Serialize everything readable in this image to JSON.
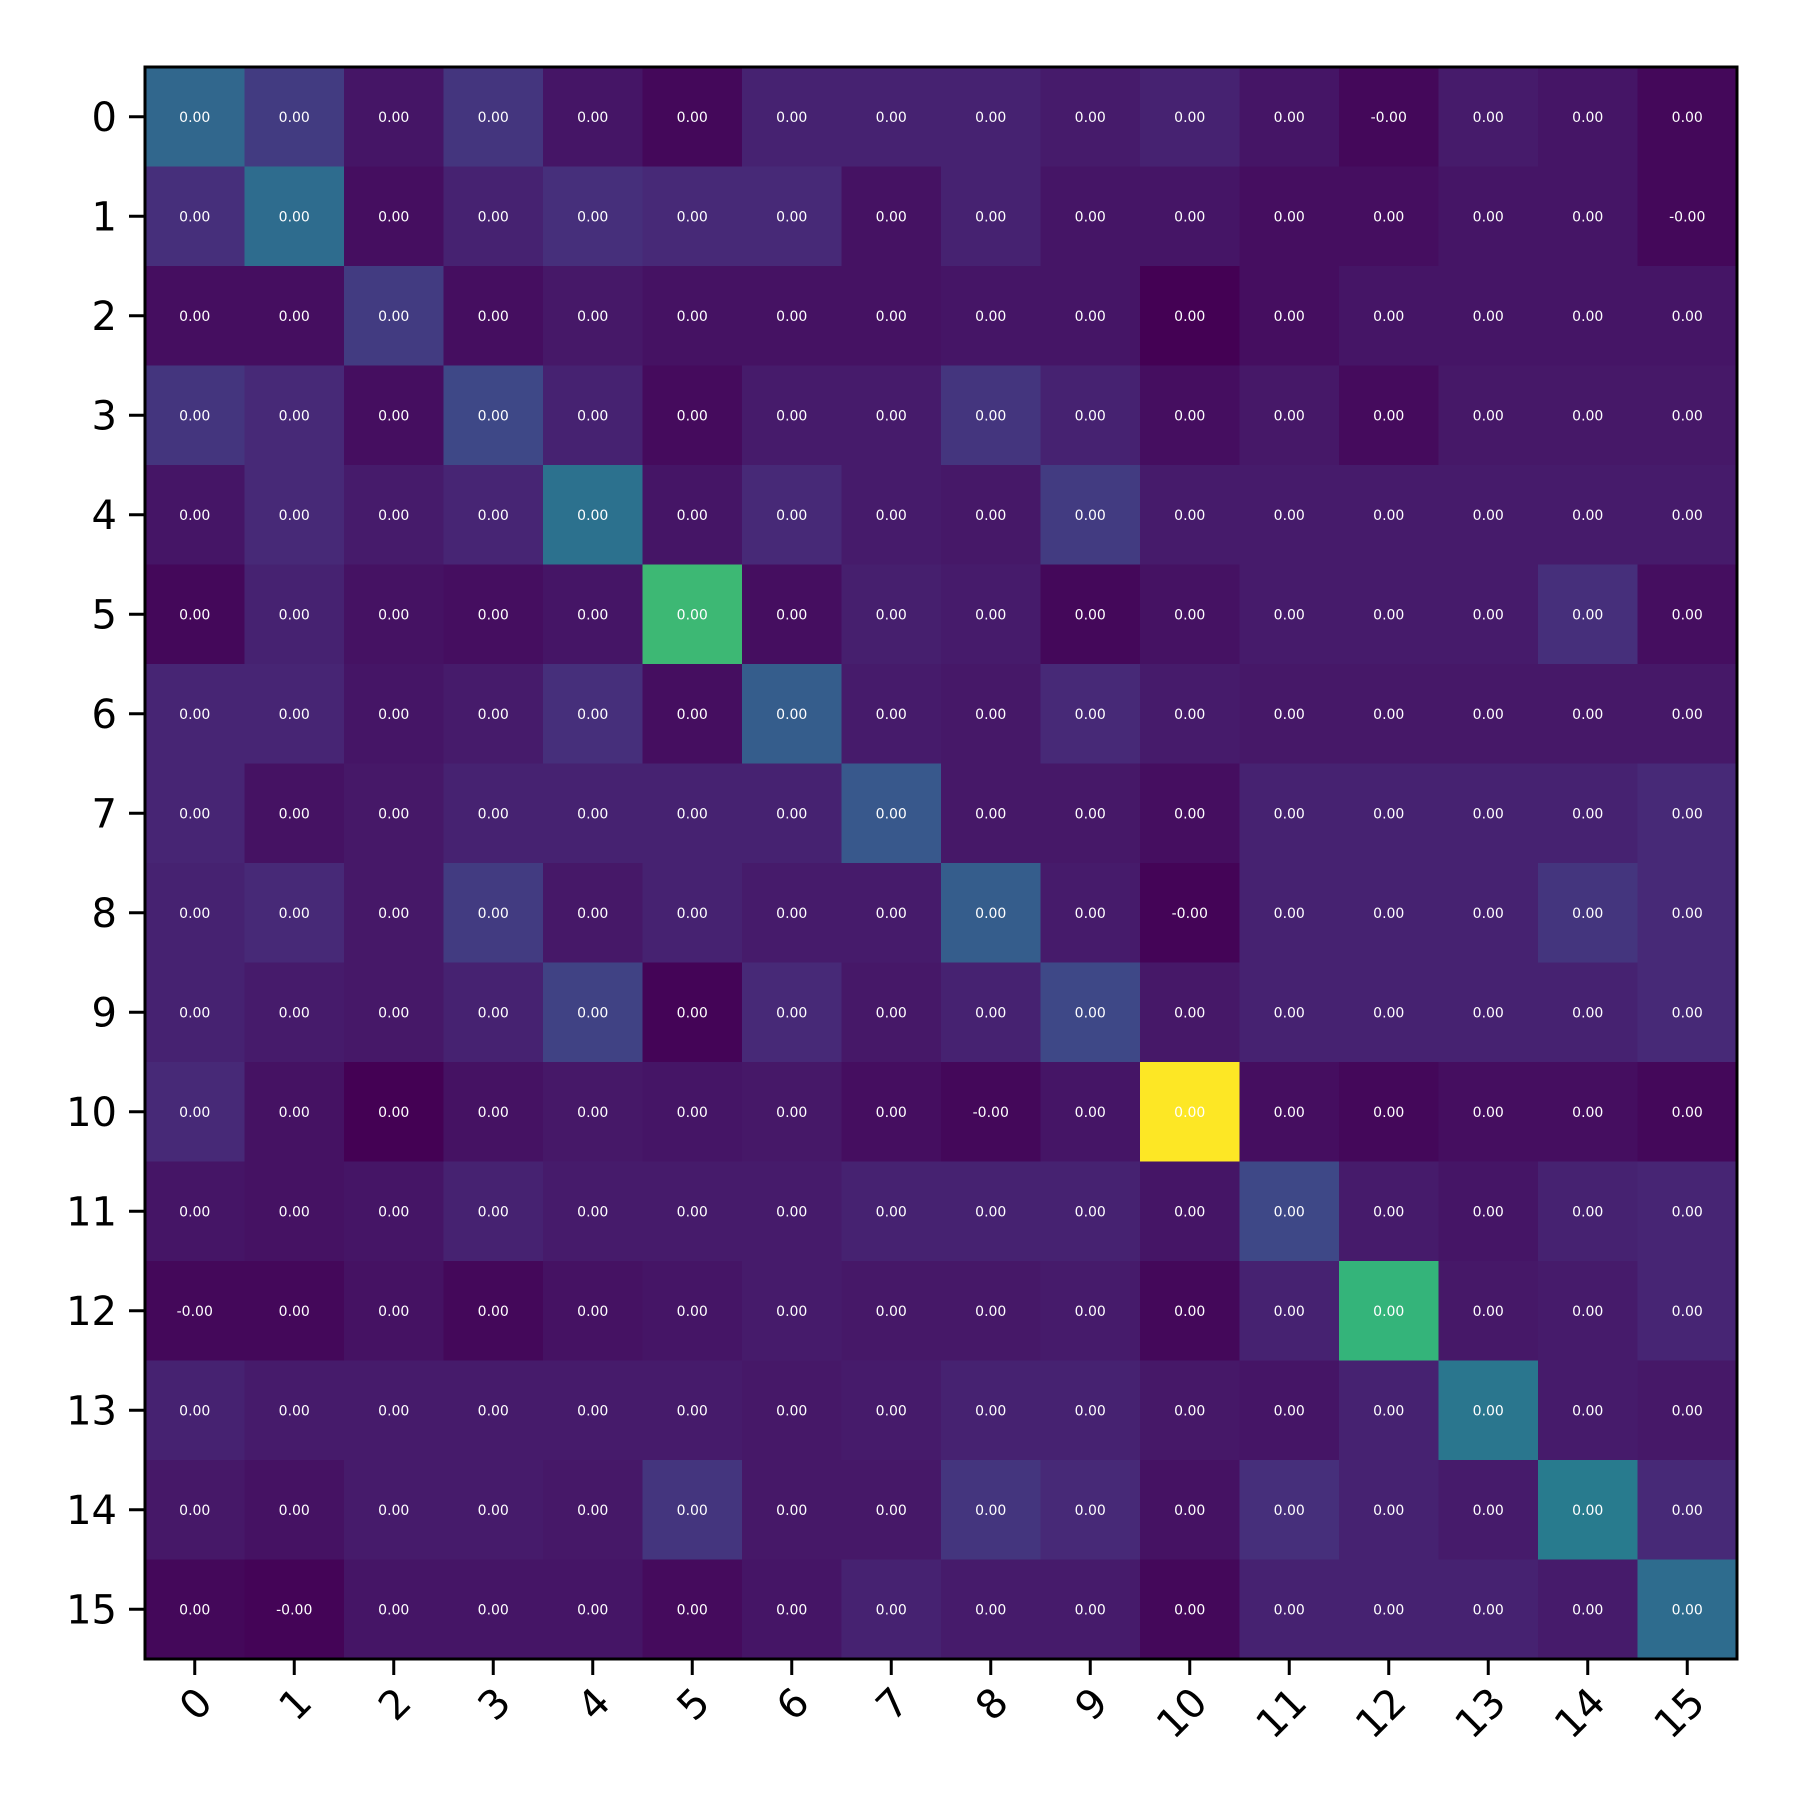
{
  "chart_data": {
    "type": "heatmap",
    "title": "",
    "xlabel": "",
    "ylabel": "",
    "x_ticks": [
      "0",
      "1",
      "2",
      "3",
      "4",
      "5",
      "6",
      "7",
      "8",
      "9",
      "10",
      "11",
      "12",
      "13",
      "14",
      "15"
    ],
    "y_ticks": [
      "0",
      "1",
      "2",
      "3",
      "4",
      "5",
      "6",
      "7",
      "8",
      "9",
      "10",
      "11",
      "12",
      "13",
      "14",
      "15"
    ],
    "x_tick_rotation": 45,
    "colormap": "viridis",
    "color_scale": [
      0.0,
      1.0
    ],
    "grid": false,
    "colorbar": false,
    "intensity": [
      [
        0.34,
        0.18,
        0.06,
        0.16,
        0.06,
        0.02,
        0.1,
        0.1,
        0.1,
        0.08,
        0.1,
        0.06,
        0.02,
        0.08,
        0.06,
        0.02
      ],
      [
        0.14,
        0.36,
        0.04,
        0.1,
        0.14,
        0.12,
        0.12,
        0.05,
        0.1,
        0.06,
        0.06,
        0.04,
        0.04,
        0.06,
        0.06,
        0.02
      ],
      [
        0.04,
        0.04,
        0.18,
        0.04,
        0.07,
        0.05,
        0.05,
        0.05,
        0.06,
        0.06,
        0.0,
        0.04,
        0.06,
        0.06,
        0.06,
        0.06
      ],
      [
        0.16,
        0.12,
        0.04,
        0.22,
        0.1,
        0.03,
        0.08,
        0.08,
        0.16,
        0.1,
        0.04,
        0.07,
        0.03,
        0.07,
        0.07,
        0.07
      ],
      [
        0.06,
        0.12,
        0.08,
        0.11,
        0.38,
        0.06,
        0.12,
        0.08,
        0.07,
        0.18,
        0.08,
        0.08,
        0.08,
        0.08,
        0.08,
        0.08
      ],
      [
        0.02,
        0.1,
        0.05,
        0.04,
        0.06,
        0.68,
        0.04,
        0.09,
        0.08,
        0.02,
        0.05,
        0.08,
        0.08,
        0.08,
        0.14,
        0.04
      ],
      [
        0.11,
        0.11,
        0.06,
        0.08,
        0.14,
        0.04,
        0.3,
        0.08,
        0.07,
        0.12,
        0.08,
        0.07,
        0.07,
        0.07,
        0.07,
        0.07
      ],
      [
        0.11,
        0.05,
        0.07,
        0.1,
        0.1,
        0.1,
        0.1,
        0.28,
        0.07,
        0.07,
        0.04,
        0.1,
        0.1,
        0.1,
        0.1,
        0.12
      ],
      [
        0.1,
        0.12,
        0.07,
        0.18,
        0.07,
        0.1,
        0.08,
        0.08,
        0.3,
        0.08,
        0.01,
        0.1,
        0.1,
        0.1,
        0.16,
        0.12
      ],
      [
        0.1,
        0.08,
        0.07,
        0.1,
        0.2,
        0.01,
        0.12,
        0.07,
        0.1,
        0.22,
        0.07,
        0.1,
        0.1,
        0.1,
        0.1,
        0.12
      ],
      [
        0.12,
        0.05,
        0.0,
        0.05,
        0.07,
        0.06,
        0.07,
        0.04,
        0.02,
        0.06,
        1.0,
        0.04,
        0.02,
        0.04,
        0.04,
        0.02
      ],
      [
        0.06,
        0.05,
        0.06,
        0.1,
        0.08,
        0.08,
        0.08,
        0.1,
        0.1,
        0.1,
        0.06,
        0.22,
        0.08,
        0.06,
        0.1,
        0.11
      ],
      [
        0.02,
        0.02,
        0.05,
        0.02,
        0.05,
        0.06,
        0.08,
        0.07,
        0.07,
        0.08,
        0.02,
        0.1,
        0.66,
        0.07,
        0.08,
        0.11
      ],
      [
        0.1,
        0.08,
        0.08,
        0.08,
        0.08,
        0.08,
        0.07,
        0.08,
        0.1,
        0.1,
        0.07,
        0.06,
        0.1,
        0.4,
        0.08,
        0.07
      ],
      [
        0.07,
        0.05,
        0.08,
        0.08,
        0.07,
        0.16,
        0.07,
        0.07,
        0.16,
        0.12,
        0.05,
        0.14,
        0.1,
        0.08,
        0.42,
        0.12
      ],
      [
        0.02,
        0.01,
        0.06,
        0.06,
        0.06,
        0.03,
        0.06,
        0.1,
        0.08,
        0.08,
        0.02,
        0.1,
        0.1,
        0.1,
        0.08,
        0.36
      ]
    ],
    "cell_labels": [
      [
        "0.00",
        "0.00",
        "0.00",
        "0.00",
        "0.00",
        "0.00",
        "0.00",
        "0.00",
        "0.00",
        "0.00",
        "0.00",
        "0.00",
        "-0.00",
        "0.00",
        "0.00",
        "0.00"
      ],
      [
        "0.00",
        "0.00",
        "0.00",
        "0.00",
        "0.00",
        "0.00",
        "0.00",
        "0.00",
        "0.00",
        "0.00",
        "0.00",
        "0.00",
        "0.00",
        "0.00",
        "0.00",
        "-0.00"
      ],
      [
        "0.00",
        "0.00",
        "0.00",
        "0.00",
        "0.00",
        "0.00",
        "0.00",
        "0.00",
        "0.00",
        "0.00",
        "0.00",
        "0.00",
        "0.00",
        "0.00",
        "0.00",
        "0.00"
      ],
      [
        "0.00",
        "0.00",
        "0.00",
        "0.00",
        "0.00",
        "0.00",
        "0.00",
        "0.00",
        "0.00",
        "0.00",
        "0.00",
        "0.00",
        "0.00",
        "0.00",
        "0.00",
        "0.00"
      ],
      [
        "0.00",
        "0.00",
        "0.00",
        "0.00",
        "0.00",
        "0.00",
        "0.00",
        "0.00",
        "0.00",
        "0.00",
        "0.00",
        "0.00",
        "0.00",
        "0.00",
        "0.00",
        "0.00"
      ],
      [
        "0.00",
        "0.00",
        "0.00",
        "0.00",
        "0.00",
        "0.00",
        "0.00",
        "0.00",
        "0.00",
        "0.00",
        "0.00",
        "0.00",
        "0.00",
        "0.00",
        "0.00",
        "0.00"
      ],
      [
        "0.00",
        "0.00",
        "0.00",
        "0.00",
        "0.00",
        "0.00",
        "0.00",
        "0.00",
        "0.00",
        "0.00",
        "0.00",
        "0.00",
        "0.00",
        "0.00",
        "0.00",
        "0.00"
      ],
      [
        "0.00",
        "0.00",
        "0.00",
        "0.00",
        "0.00",
        "0.00",
        "0.00",
        "0.00",
        "0.00",
        "0.00",
        "0.00",
        "0.00",
        "0.00",
        "0.00",
        "0.00",
        "0.00"
      ],
      [
        "0.00",
        "0.00",
        "0.00",
        "0.00",
        "0.00",
        "0.00",
        "0.00",
        "0.00",
        "0.00",
        "0.00",
        "-0.00",
        "0.00",
        "0.00",
        "0.00",
        "0.00",
        "0.00"
      ],
      [
        "0.00",
        "0.00",
        "0.00",
        "0.00",
        "0.00",
        "0.00",
        "0.00",
        "0.00",
        "0.00",
        "0.00",
        "0.00",
        "0.00",
        "0.00",
        "0.00",
        "0.00",
        "0.00"
      ],
      [
        "0.00",
        "0.00",
        "0.00",
        "0.00",
        "0.00",
        "0.00",
        "0.00",
        "0.00",
        "-0.00",
        "0.00",
        "0.00",
        "0.00",
        "0.00",
        "0.00",
        "0.00",
        "0.00"
      ],
      [
        "0.00",
        "0.00",
        "0.00",
        "0.00",
        "0.00",
        "0.00",
        "0.00",
        "0.00",
        "0.00",
        "0.00",
        "0.00",
        "0.00",
        "0.00",
        "0.00",
        "0.00",
        "0.00"
      ],
      [
        "-0.00",
        "0.00",
        "0.00",
        "0.00",
        "0.00",
        "0.00",
        "0.00",
        "0.00",
        "0.00",
        "0.00",
        "0.00",
        "0.00",
        "0.00",
        "0.00",
        "0.00",
        "0.00"
      ],
      [
        "0.00",
        "0.00",
        "0.00",
        "0.00",
        "0.00",
        "0.00",
        "0.00",
        "0.00",
        "0.00",
        "0.00",
        "0.00",
        "0.00",
        "0.00",
        "0.00",
        "0.00",
        "0.00"
      ],
      [
        "0.00",
        "0.00",
        "0.00",
        "0.00",
        "0.00",
        "0.00",
        "0.00",
        "0.00",
        "0.00",
        "0.00",
        "0.00",
        "0.00",
        "0.00",
        "0.00",
        "0.00",
        "0.00"
      ],
      [
        "0.00",
        "-0.00",
        "0.00",
        "0.00",
        "0.00",
        "0.00",
        "0.00",
        "0.00",
        "0.00",
        "0.00",
        "0.00",
        "0.00",
        "0.00",
        "0.00",
        "0.00",
        "0.00"
      ]
    ]
  }
}
